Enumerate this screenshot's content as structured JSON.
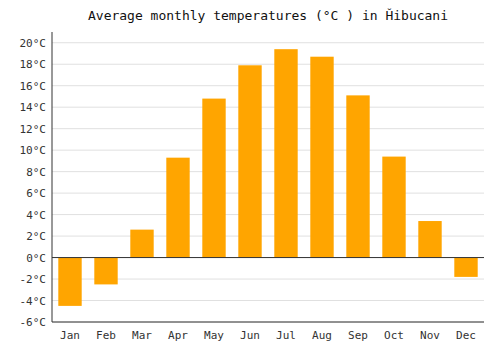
{
  "chart_data": {
    "type": "bar",
    "title": "Average monthly temperatures (°C ) in Ȟibucani",
    "categories": [
      "Jan",
      "Feb",
      "Mar",
      "Apr",
      "May",
      "Jun",
      "Jul",
      "Aug",
      "Sep",
      "Oct",
      "Nov",
      "Dec"
    ],
    "values": [
      -4.5,
      -2.5,
      2.6,
      9.3,
      14.8,
      17.9,
      19.4,
      18.7,
      15.1,
      9.4,
      3.4,
      -1.8
    ],
    "color": "#FFA500",
    "ylim": [
      -6,
      21
    ],
    "yticks": [
      {
        "value": -6,
        "label": "-6°C"
      },
      {
        "value": -4,
        "label": "-4°C"
      },
      {
        "value": -2,
        "label": "-2°C"
      },
      {
        "value": 0,
        "label": "0°C"
      },
      {
        "value": 2,
        "label": "2°C"
      },
      {
        "value": 4,
        "label": "4°C"
      },
      {
        "value": 6,
        "label": "6°C"
      },
      {
        "value": 8,
        "label": "8°C"
      },
      {
        "value": 10,
        "label": "10°C"
      },
      {
        "value": 12,
        "label": "12°C"
      },
      {
        "value": 14,
        "label": "14°C"
      },
      {
        "value": 16,
        "label": "16°C"
      },
      {
        "value": 18,
        "label": "18°C"
      },
      {
        "value": 20,
        "label": "20°C"
      }
    ],
    "grid": true
  }
}
